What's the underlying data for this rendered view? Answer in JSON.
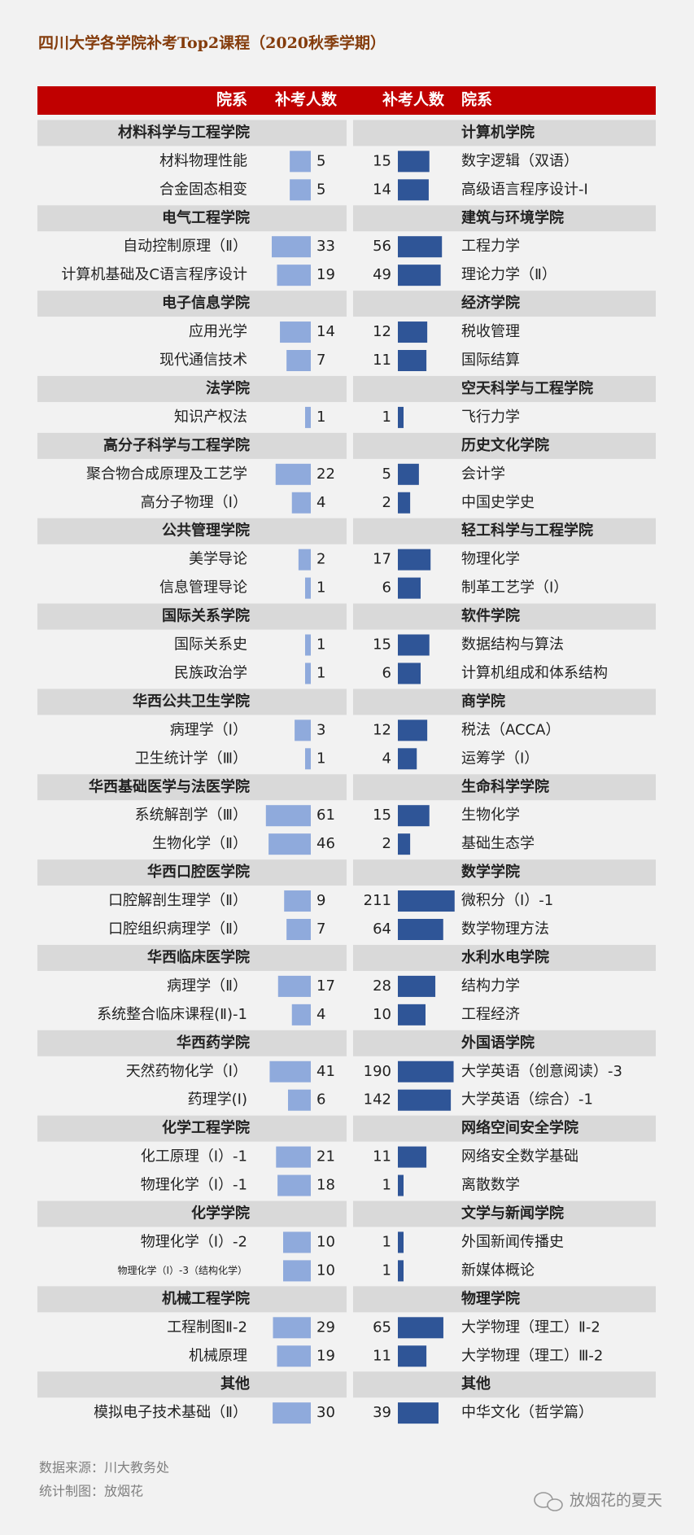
{
  "title": "四川大学各学院补考Top2课程（2020秋季学期）",
  "header": {
    "left_college": "院系",
    "left_count": "补考人数",
    "right_count": "补考人数",
    "right_college": "院系"
  },
  "bar_scale": "log",
  "left_color": "#8faadc",
  "right_color": "#2f5597",
  "left": [
    {
      "name": "材料科学与工程学院",
      "courses": [
        {
          "name": "材料物理性能",
          "count": 5
        },
        {
          "name": "合金固态相变",
          "count": 5
        }
      ]
    },
    {
      "name": "电气工程学院",
      "courses": [
        {
          "name": "自动控制原理（Ⅱ）",
          "count": 33
        },
        {
          "name": "计算机基础及C语言程序设计",
          "count": 19
        }
      ]
    },
    {
      "name": "电子信息学院",
      "courses": [
        {
          "name": "应用光学",
          "count": 14
        },
        {
          "name": "现代通信技术",
          "count": 7
        }
      ]
    },
    {
      "name": "法学院",
      "courses": [
        {
          "name": "知识产权法",
          "count": 1
        }
      ]
    },
    {
      "name": "高分子科学与工程学院",
      "courses": [
        {
          "name": "聚合物合成原理及工艺学",
          "count": 22
        },
        {
          "name": "高分子物理（Ⅰ）",
          "count": 4
        }
      ]
    },
    {
      "name": "公共管理学院",
      "courses": [
        {
          "name": "美学导论",
          "count": 2
        },
        {
          "name": "信息管理导论",
          "count": 1
        }
      ]
    },
    {
      "name": "国际关系学院",
      "courses": [
        {
          "name": "国际关系史",
          "count": 1
        },
        {
          "name": "民族政治学",
          "count": 1
        }
      ]
    },
    {
      "name": "华西公共卫生学院",
      "courses": [
        {
          "name": "病理学（Ⅰ）",
          "count": 3
        },
        {
          "name": "卫生统计学（Ⅲ）",
          "count": 1
        }
      ]
    },
    {
      "name": "华西基础医学与法医学院",
      "courses": [
        {
          "name": "系统解剖学（Ⅲ）",
          "count": 61
        },
        {
          "name": "生物化学（Ⅱ）",
          "count": 46
        }
      ]
    },
    {
      "name": "华西口腔医学院",
      "courses": [
        {
          "name": "口腔解剖生理学（Ⅱ）",
          "count": 9
        },
        {
          "name": "口腔组织病理学（Ⅱ）",
          "count": 7
        }
      ]
    },
    {
      "name": "华西临床医学院",
      "courses": [
        {
          "name": "病理学（Ⅱ）",
          "count": 17
        },
        {
          "name": "系统整合临床课程(Ⅱ)-1",
          "count": 4
        }
      ]
    },
    {
      "name": "华西药学院",
      "courses": [
        {
          "name": "天然药物化学（Ⅰ）",
          "count": 41
        },
        {
          "name": "药理学(Ⅰ)",
          "count": 6
        }
      ]
    },
    {
      "name": "化学工程学院",
      "courses": [
        {
          "name": "化工原理（Ⅰ）-1",
          "count": 21
        },
        {
          "name": "物理化学（Ⅰ）-1",
          "count": 18
        }
      ]
    },
    {
      "name": "化学学院",
      "courses": [
        {
          "name": "物理化学（Ⅰ）-2",
          "count": 10
        },
        {
          "name": "物理化学（Ⅰ）-3（结构化学）",
          "count": 10
        }
      ]
    },
    {
      "name": "机械工程学院",
      "courses": [
        {
          "name": "工程制图Ⅱ-2",
          "count": 29
        },
        {
          "name": "机械原理",
          "count": 19
        }
      ]
    },
    {
      "name": "其他",
      "courses": [
        {
          "name": "模拟电子技术基础（Ⅱ）",
          "count": 30
        }
      ]
    }
  ],
  "right": [
    {
      "name": "计算机学院",
      "courses": [
        {
          "name": "数字逻辑（双语）",
          "count": 15
        },
        {
          "name": "高级语言程序设计-Ⅰ",
          "count": 14
        }
      ]
    },
    {
      "name": "建筑与环境学院",
      "courses": [
        {
          "name": "工程力学",
          "count": 56
        },
        {
          "name": "理论力学（Ⅱ）",
          "count": 49
        }
      ]
    },
    {
      "name": "经济学院",
      "courses": [
        {
          "name": "税收管理",
          "count": 12
        },
        {
          "name": "国际结算",
          "count": 11
        }
      ]
    },
    {
      "name": "空天科学与工程学院",
      "courses": [
        {
          "name": "飞行力学",
          "count": 1
        }
      ]
    },
    {
      "name": "历史文化学院",
      "courses": [
        {
          "name": "会计学",
          "count": 5
        },
        {
          "name": "中国史学史",
          "count": 2
        }
      ]
    },
    {
      "name": "轻工科学与工程学院",
      "courses": [
        {
          "name": "物理化学",
          "count": 17
        },
        {
          "name": "制革工艺学（Ⅰ）",
          "count": 6
        }
      ]
    },
    {
      "name": "软件学院",
      "courses": [
        {
          "name": "数据结构与算法",
          "count": 15
        },
        {
          "name": "计算机组成和体系结构",
          "count": 6
        }
      ]
    },
    {
      "name": "商学院",
      "courses": [
        {
          "name": "税法（ACCA）",
          "count": 12
        },
        {
          "name": "运筹学（Ⅰ）",
          "count": 4
        }
      ]
    },
    {
      "name": "生命科学学院",
      "courses": [
        {
          "name": "生物化学",
          "count": 15
        },
        {
          "name": "基础生态学",
          "count": 2
        }
      ]
    },
    {
      "name": "数学学院",
      "courses": [
        {
          "name": "微积分（Ⅰ）-1",
          "count": 211
        },
        {
          "name": "数学物理方法",
          "count": 64
        }
      ]
    },
    {
      "name": "水利水电学院",
      "courses": [
        {
          "name": "结构力学",
          "count": 28
        },
        {
          "name": "工程经济",
          "count": 10
        }
      ]
    },
    {
      "name": "外国语学院",
      "courses": [
        {
          "name": "大学英语（创意阅读）-3",
          "count": 190
        },
        {
          "name": "大学英语（综合）-1",
          "count": 142
        }
      ]
    },
    {
      "name": "网络空间安全学院",
      "courses": [
        {
          "name": "网络安全数学基础",
          "count": 11
        },
        {
          "name": "离散数学",
          "count": 1
        }
      ]
    },
    {
      "name": "文学与新闻学院",
      "courses": [
        {
          "name": "外国新闻传播史",
          "count": 1
        },
        {
          "name": "新媒体概论",
          "count": 1
        }
      ]
    },
    {
      "name": "物理学院",
      "courses": [
        {
          "name": "大学物理（理工）Ⅱ-2",
          "count": 65
        },
        {
          "name": "大学物理（理工）Ⅲ-2",
          "count": 11
        }
      ]
    },
    {
      "name": "其他",
      "courses": [
        {
          "name": "中华文化（哲学篇）",
          "count": 39
        }
      ]
    }
  ],
  "footer": {
    "source": "数据来源：川大教务处",
    "author": "统计制图：放烟花"
  },
  "watermark": "放烟花的夏天"
}
